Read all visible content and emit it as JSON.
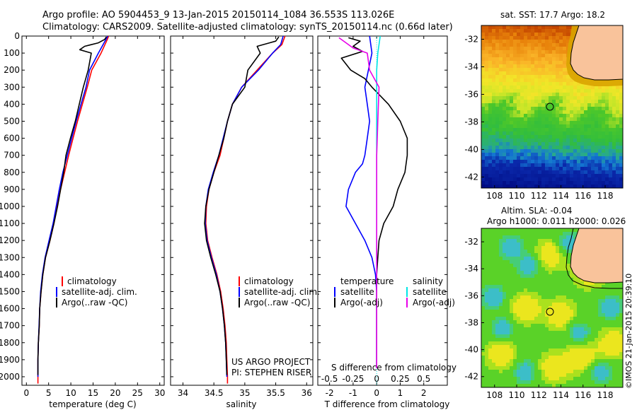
{
  "header": {
    "title_line1": "Argo profile: AO 5904453_9 13-Jan-2015 20150114_1084 36.553S 113.026E",
    "title_line2": "Climatology: CARS2009. Satellite-adjusted climatology: synTS_20150114.nc (0.66d later)"
  },
  "colors": {
    "climatology": "#ff0000",
    "satellite_adj": "#0000ff",
    "argo": "#000000",
    "satellite_salinity": "#00e5e5",
    "argo_adj_salinity": "#e800e8",
    "land": "#f9c39b"
  },
  "chart_data": [
    {
      "type": "line",
      "id": "temperature",
      "xlabel": "temperature (deg C)",
      "ylabel": "",
      "xlim": [
        -1,
        31
      ],
      "ylim": [
        2050,
        0
      ],
      "xticks": [
        "0",
        "5",
        "10",
        "15",
        "20",
        "25",
        "30"
      ],
      "yticks": [
        "0",
        "100",
        "200",
        "300",
        "400",
        "500",
        "600",
        "700",
        "800",
        "900",
        "1000",
        "1100",
        "1200",
        "1300",
        "1400",
        "1500",
        "1600",
        "1700",
        "1800",
        "1900",
        "2000"
      ],
      "legend": [
        "climatology",
        "satellite-adj. clim.",
        "Argo(..raw -QC)"
      ],
      "series": [
        {
          "name": "climatology",
          "color": "#ff0000",
          "x": [
            18.5,
            18.2,
            16.8,
            14.7,
            13.7,
            12.6,
            11.5,
            10.5,
            9.5,
            8.6,
            7.7,
            6.9,
            6.2,
            5.3,
            4.3,
            3.7,
            3.3,
            3.0,
            2.9,
            2.7,
            2.6,
            2.6,
            2.6
          ],
          "y": [
            0,
            20,
            100,
            200,
            300,
            400,
            500,
            600,
            700,
            800,
            900,
            1000,
            1100,
            1200,
            1300,
            1400,
            1500,
            1600,
            1700,
            1800,
            1900,
            2000,
            2040
          ]
        },
        {
          "name": "satellite-adj. clim.",
          "color": "#0000ff",
          "x": [
            18.3,
            17.9,
            16.2,
            14.2,
            13.4,
            12.3,
            11.2,
            10.2,
            9.2,
            8.2,
            7.4,
            6.7,
            6.0,
            5.1,
            4.2,
            3.6,
            3.2,
            3.0,
            2.85,
            2.7,
            2.6,
            2.6
          ],
          "y": [
            0,
            20,
            100,
            200,
            300,
            400,
            500,
            600,
            700,
            800,
            900,
            1000,
            1100,
            1200,
            1300,
            1400,
            1500,
            1600,
            1700,
            1800,
            1900,
            2000
          ]
        },
        {
          "name": "Argo(..raw -QC)",
          "color": "#000000",
          "x": [
            18.0,
            17.6,
            16.2,
            13.1,
            12.0,
            14.6,
            13.9,
            12.8,
            11.9,
            11.0,
            9.9,
            8.9,
            8.4,
            7.7,
            7.0,
            6.2,
            5.3,
            4.3,
            3.7,
            3.3,
            3.0,
            2.9,
            2.7,
            2.6,
            2.6
          ],
          "y": [
            5,
            20,
            40,
            60,
            80,
            100,
            200,
            300,
            400,
            500,
            600,
            700,
            800,
            900,
            1000,
            1100,
            1200,
            1300,
            1400,
            1500,
            1600,
            1700,
            1800,
            1900,
            1990
          ]
        }
      ]
    },
    {
      "type": "line",
      "id": "salinity",
      "xlabel": "salinity",
      "xlim": [
        33.8,
        36.1
      ],
      "ylim": [
        2050,
        0
      ],
      "xticks": [
        "34",
        "34.5",
        "35",
        "35.5",
        "36"
      ],
      "legend": [
        "climatology",
        "satellite-adj. clim.",
        "Argo(..raw -QC)"
      ],
      "annotation": [
        "US ARGO PROJECT",
        "PI: STEPHEN RISER"
      ],
      "series": [
        {
          "name": "climatology",
          "color": "#ff0000",
          "x": [
            35.65,
            35.6,
            35.45,
            35.2,
            34.95,
            34.8,
            34.72,
            34.66,
            34.6,
            34.5,
            34.42,
            34.38,
            34.37,
            34.4,
            34.47,
            34.55,
            34.61,
            34.65,
            34.68,
            34.7,
            34.71,
            34.72,
            34.72
          ],
          "y": [
            0,
            50,
            100,
            200,
            300,
            400,
            500,
            600,
            700,
            800,
            900,
            1000,
            1100,
            1200,
            1300,
            1400,
            1500,
            1600,
            1700,
            1800,
            1900,
            2000,
            2040
          ]
        },
        {
          "name": "satellite-adj. clim.",
          "color": "#0000ff",
          "x": [
            35.62,
            35.58,
            35.45,
            35.22,
            34.95,
            34.8,
            34.72,
            34.65,
            34.58,
            34.49,
            34.41,
            34.37,
            34.36,
            34.39,
            34.46,
            34.54,
            34.6,
            34.64,
            34.67,
            34.69,
            34.7,
            34.71
          ],
          "y": [
            0,
            50,
            100,
            200,
            300,
            400,
            500,
            600,
            700,
            800,
            900,
            1000,
            1100,
            1200,
            1300,
            1400,
            1500,
            1600,
            1700,
            1800,
            1900,
            2000
          ]
        },
        {
          "name": "Argo(..raw -QC)",
          "color": "#000000",
          "x": [
            35.55,
            35.5,
            35.2,
            35.25,
            35.05,
            35.0,
            34.8,
            34.72,
            34.66,
            34.58,
            34.5,
            34.42,
            34.37,
            34.35,
            34.38,
            34.45,
            34.53,
            34.6,
            34.64,
            34.67,
            34.69,
            34.7,
            34.71
          ],
          "y": [
            5,
            30,
            60,
            100,
            200,
            300,
            400,
            500,
            600,
            700,
            800,
            900,
            1000,
            1100,
            1200,
            1300,
            1400,
            1500,
            1600,
            1700,
            1800,
            1900,
            1990
          ]
        }
      ]
    },
    {
      "type": "line",
      "id": "difference",
      "xlabel": "T difference from climatology",
      "xlabel2": "S difference from climatology",
      "xlim": [
        -2.5,
        3.0
      ],
      "ylim": [
        2050,
        0
      ],
      "xticks": [
        "-2",
        "-1",
        "0",
        "1",
        "2"
      ],
      "xticks2": [
        "-0.5",
        "-0.25",
        "0",
        "0.25",
        "0.5"
      ],
      "legend_groups": [
        {
          "title": "temperature",
          "entries": [
            "satellite",
            "Argo(-adj)"
          ]
        },
        {
          "title": "salinity",
          "entries": [
            "satellite",
            "Argo(-adj)"
          ]
        }
      ],
      "series": [
        {
          "name": "temperature satellite",
          "color": "#0000ff",
          "x": [
            -0.3,
            -0.2,
            -0.35,
            -0.5,
            -0.4,
            -0.3,
            -0.4,
            -0.5,
            -0.6,
            -0.9,
            -1.2,
            -1.3,
            -0.9,
            -0.5,
            -0.2,
            -0.05,
            0,
            0,
            0,
            0,
            0
          ],
          "y": [
            0,
            100,
            200,
            300,
            400,
            500,
            600,
            700,
            750,
            800,
            900,
            1000,
            1100,
            1200,
            1300,
            1400,
            1500,
            1600,
            1700,
            1800,
            1950
          ]
        },
        {
          "name": "temperature Argo(-adj)",
          "color": "#000000",
          "x": [
            -1.2,
            -0.7,
            -1.0,
            -0.6,
            -1.5,
            -1.1,
            -0.5,
            -0.2,
            0.5,
            1.0,
            1.3,
            1.3,
            1.2,
            0.9,
            0.7,
            0.3,
            0.1,
            0.05,
            0,
            0,
            0,
            0
          ],
          "y": [
            10,
            30,
            60,
            90,
            130,
            200,
            250,
            300,
            400,
            500,
            600,
            700,
            800,
            900,
            1000,
            1100,
            1200,
            1300,
            1400,
            1500,
            1700,
            1950
          ]
        },
        {
          "name": "salinity satellite",
          "color": "#00e5e5",
          "x": [
            0.15,
            0.05,
            0.0,
            0.0,
            0.0,
            0.0,
            0.0,
            0.0,
            0.0
          ],
          "y": [
            0,
            100,
            200,
            400,
            800,
            1200,
            1600,
            1800,
            1950
          ]
        },
        {
          "name": "salinity Argo(-adj)",
          "color": "#e800e8",
          "x": [
            -1.6,
            -1.3,
            -1.0,
            -0.4,
            -0.3,
            0.1,
            0.05,
            0,
            0,
            0,
            0,
            0
          ],
          "y": [
            10,
            40,
            70,
            100,
            200,
            300,
            500,
            700,
            900,
            1200,
            1600,
            1950
          ]
        }
      ]
    },
    {
      "type": "heatmap",
      "id": "sst-map",
      "title": "sat. SST: 17.7  Argo: 18.2",
      "xticks": [
        "108",
        "110",
        "112",
        "114",
        "116",
        "118"
      ],
      "yticks": [
        "-32",
        "-34",
        "-36",
        "-38",
        "-40",
        "-42"
      ],
      "xlim": [
        106.8,
        119.6
      ],
      "ylim": [
        -42.8,
        -31.0
      ],
      "marker": {
        "lon": 113.026,
        "lat": -36.553
      }
    },
    {
      "type": "heatmap",
      "id": "sla-map",
      "title": "Altim. SLA: -0.04",
      "subtitle": "Argo h1000: 0.011 h2000: 0.026",
      "xticks": [
        "108",
        "110",
        "112",
        "114",
        "116",
        "118"
      ],
      "yticks": [
        "-32",
        "-34",
        "-36",
        "-38",
        "-40",
        "-42"
      ],
      "xlim": [
        106.8,
        119.6
      ],
      "ylim": [
        -42.8,
        -31.0
      ],
      "marker": {
        "lon": 113.026,
        "lat": -36.553
      }
    }
  ],
  "credit": "©IMOS 21-Jan-2015 20:39:10"
}
